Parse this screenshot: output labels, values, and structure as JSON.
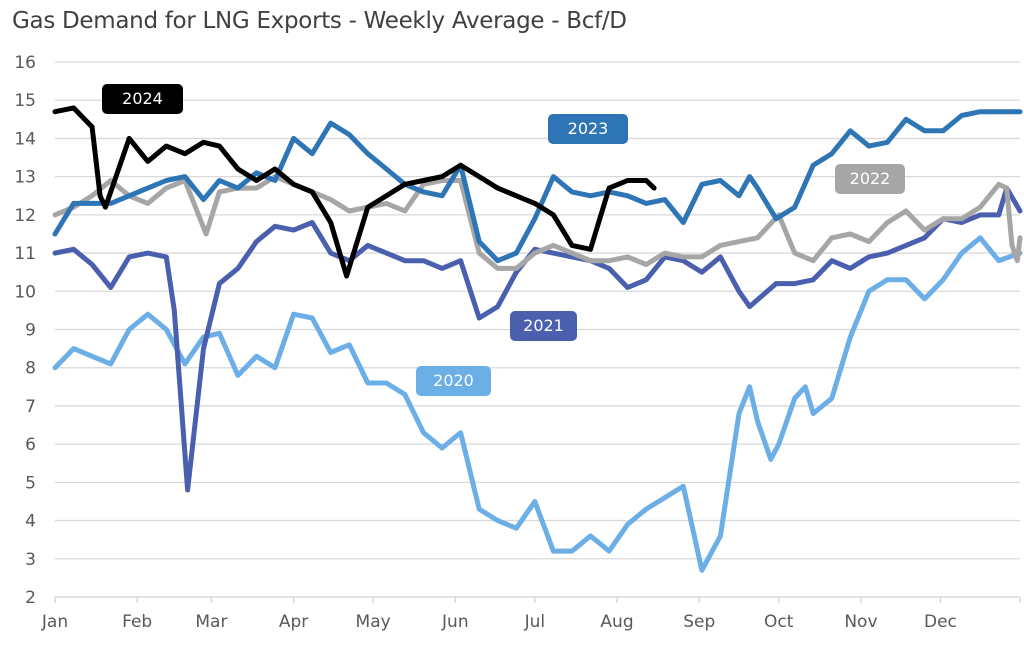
{
  "chart_data": {
    "type": "line",
    "title": "Gas Demand for LNG Exports - Weekly Average - Bcf/D",
    "xlabel": "",
    "ylabel": "",
    "ylim": [
      2,
      16
    ],
    "yticks": [
      "2",
      "3",
      "4",
      "5",
      "6",
      "7",
      "8",
      "9",
      "10",
      "11",
      "12",
      "13",
      "14",
      "15",
      "16"
    ],
    "xticks": [
      "Jan",
      "Feb",
      "Mar",
      "Apr",
      "May",
      "Jun",
      "Jul",
      "Aug",
      "Sep",
      "Oct",
      "Nov",
      "Dec"
    ],
    "grid": true,
    "legend": "inline labels",
    "series": [
      {
        "name": "2020",
        "color": "#6CAEE6",
        "points": [
          [
            "Jan 1",
            8.0
          ],
          [
            "Jan 8",
            8.5
          ],
          [
            "Jan 15",
            8.3
          ],
          [
            "Jan 22",
            8.1
          ],
          [
            "Jan 29",
            9.0
          ],
          [
            "Feb 5",
            9.4
          ],
          [
            "Feb 12",
            9.0
          ],
          [
            "Feb 19",
            8.1
          ],
          [
            "Feb 26",
            8.8
          ],
          [
            "Mar 4",
            8.9
          ],
          [
            "Mar 11",
            7.8
          ],
          [
            "Mar 18",
            8.3
          ],
          [
            "Mar 25",
            8.0
          ],
          [
            "Apr 1",
            9.4
          ],
          [
            "Apr 8",
            9.3
          ],
          [
            "Apr 15",
            8.4
          ],
          [
            "Apr 22",
            8.6
          ],
          [
            "Apr 29",
            7.6
          ],
          [
            "May 6",
            7.6
          ],
          [
            "May 13",
            7.3
          ],
          [
            "May 20",
            6.3
          ],
          [
            "May 27",
            5.9
          ],
          [
            "Jun 3",
            6.3
          ],
          [
            "Jun 10",
            4.3
          ],
          [
            "Jun 17",
            4.0
          ],
          [
            "Jun 24",
            3.8
          ],
          [
            "Jul 1",
            4.5
          ],
          [
            "Jul 8",
            3.2
          ],
          [
            "Jul 15",
            3.2
          ],
          [
            "Jul 22",
            3.6
          ],
          [
            "Jul 29",
            3.2
          ],
          [
            "Aug 5",
            3.9
          ],
          [
            "Aug 12",
            4.3
          ],
          [
            "Aug 19",
            4.6
          ],
          [
            "Aug 26",
            4.9
          ],
          [
            "Sep 2",
            2.7
          ],
          [
            "Sep 9",
            3.6
          ],
          [
            "Sep 16",
            6.8
          ],
          [
            "Sep 20",
            7.5
          ],
          [
            "Sep 23",
            6.6
          ],
          [
            "Sep 28",
            5.6
          ],
          [
            "Oct 1",
            6.0
          ],
          [
            "Oct 7",
            7.2
          ],
          [
            "Oct 11",
            7.5
          ],
          [
            "Oct 14",
            6.8
          ],
          [
            "Oct 21",
            7.2
          ],
          [
            "Oct 28",
            8.8
          ],
          [
            "Nov 4",
            10.0
          ],
          [
            "Nov 11",
            10.3
          ],
          [
            "Nov 18",
            10.3
          ],
          [
            "Nov 25",
            9.8
          ],
          [
            "Dec 2",
            10.3
          ],
          [
            "Dec 9",
            11.0
          ],
          [
            "Dec 16",
            11.4
          ],
          [
            "Dec 23",
            10.8
          ],
          [
            "Dec 31",
            11.0
          ]
        ]
      },
      {
        "name": "2021",
        "color": "#4A5FAD",
        "points": [
          [
            "Jan 1",
            11.0
          ],
          [
            "Jan 8",
            11.1
          ],
          [
            "Jan 15",
            10.7
          ],
          [
            "Jan 22",
            10.1
          ],
          [
            "Jan 29",
            10.9
          ],
          [
            "Feb 5",
            11.0
          ],
          [
            "Feb 12",
            10.9
          ],
          [
            "Feb 15",
            9.5
          ],
          [
            "Feb 20",
            4.8
          ],
          [
            "Feb 26",
            8.5
          ],
          [
            "Mar 4",
            10.2
          ],
          [
            "Mar 11",
            10.6
          ],
          [
            "Mar 18",
            11.3
          ],
          [
            "Mar 25",
            11.7
          ],
          [
            "Apr 1",
            11.6
          ],
          [
            "Apr 8",
            11.8
          ],
          [
            "Apr 15",
            11.0
          ],
          [
            "Apr 22",
            10.8
          ],
          [
            "Apr 29",
            11.2
          ],
          [
            "May 6",
            11.0
          ],
          [
            "May 13",
            10.8
          ],
          [
            "May 20",
            10.8
          ],
          [
            "May 27",
            10.6
          ],
          [
            "Jun 3",
            10.8
          ],
          [
            "Jun 10",
            9.3
          ],
          [
            "Jun 17",
            9.6
          ],
          [
            "Jun 24",
            10.5
          ],
          [
            "Jul 1",
            11.1
          ],
          [
            "Jul 8",
            11.0
          ],
          [
            "Jul 15",
            10.9
          ],
          [
            "Jul 22",
            10.8
          ],
          [
            "Jul 29",
            10.6
          ],
          [
            "Aug 5",
            10.1
          ],
          [
            "Aug 12",
            10.3
          ],
          [
            "Aug 19",
            10.9
          ],
          [
            "Aug 26",
            10.8
          ],
          [
            "Sep 2",
            10.5
          ],
          [
            "Sep 9",
            10.9
          ],
          [
            "Sep 16",
            10.0
          ],
          [
            "Sep 20",
            9.6
          ],
          [
            "Sep 30",
            10.2
          ],
          [
            "Oct 7",
            10.2
          ],
          [
            "Oct 14",
            10.3
          ],
          [
            "Oct 21",
            10.8
          ],
          [
            "Oct 28",
            10.6
          ],
          [
            "Nov 4",
            10.9
          ],
          [
            "Nov 11",
            11.0
          ],
          [
            "Nov 18",
            11.2
          ],
          [
            "Nov 25",
            11.4
          ],
          [
            "Dec 2",
            11.9
          ],
          [
            "Dec 9",
            11.8
          ],
          [
            "Dec 16",
            12.0
          ],
          [
            "Dec 23",
            12.0
          ],
          [
            "Dec 26",
            12.7
          ],
          [
            "Dec 31",
            12.1
          ]
        ]
      },
      {
        "name": "2022",
        "color": "#A6A6A6",
        "points": [
          [
            "Jan 1",
            12.0
          ],
          [
            "Jan 8",
            12.2
          ],
          [
            "Jan 15",
            12.5
          ],
          [
            "Jan 22",
            12.9
          ],
          [
            "Jan 29",
            12.5
          ],
          [
            "Feb 5",
            12.3
          ],
          [
            "Feb 12",
            12.7
          ],
          [
            "Feb 19",
            12.9
          ],
          [
            "Feb 27",
            11.5
          ],
          [
            "Mar 4",
            12.6
          ],
          [
            "Mar 11",
            12.7
          ],
          [
            "Mar 18",
            12.7
          ],
          [
            "Mar 25",
            13.0
          ],
          [
            "Apr 1",
            12.8
          ],
          [
            "Apr 8",
            12.6
          ],
          [
            "Apr 15",
            12.4
          ],
          [
            "Apr 22",
            12.1
          ],
          [
            "Apr 29",
            12.2
          ],
          [
            "May 6",
            12.3
          ],
          [
            "May 13",
            12.1
          ],
          [
            "May 20",
            12.8
          ],
          [
            "May 27",
            12.9
          ],
          [
            "Jun 3",
            12.9
          ],
          [
            "Jun 10",
            11.0
          ],
          [
            "Jun 17",
            10.6
          ],
          [
            "Jun 24",
            10.6
          ],
          [
            "Jul 1",
            11.0
          ],
          [
            "Jul 8",
            11.2
          ],
          [
            "Jul 15",
            11.0
          ],
          [
            "Jul 22",
            10.8
          ],
          [
            "Jul 29",
            10.8
          ],
          [
            "Aug 5",
            10.9
          ],
          [
            "Aug 12",
            10.7
          ],
          [
            "Aug 19",
            11.0
          ],
          [
            "Aug 26",
            10.9
          ],
          [
            "Sep 2",
            10.9
          ],
          [
            "Sep 9",
            11.2
          ],
          [
            "Sep 16",
            11.3
          ],
          [
            "Sep 23",
            11.4
          ],
          [
            "Oct 1",
            12.0
          ],
          [
            "Oct 7",
            11.0
          ],
          [
            "Oct 14",
            10.8
          ],
          [
            "Oct 21",
            11.4
          ],
          [
            "Oct 28",
            11.5
          ],
          [
            "Nov 4",
            11.3
          ],
          [
            "Nov 11",
            11.8
          ],
          [
            "Nov 18",
            12.1
          ],
          [
            "Nov 25",
            11.6
          ],
          [
            "Dec 2",
            11.9
          ],
          [
            "Dec 9",
            11.9
          ],
          [
            "Dec 16",
            12.2
          ],
          [
            "Dec 23",
            12.8
          ],
          [
            "Dec 26",
            12.7
          ],
          [
            "Dec 28",
            11.2
          ],
          [
            "Dec 30",
            10.8
          ],
          [
            "Dec 31",
            11.4
          ]
        ]
      },
      {
        "name": "2023",
        "color": "#2E75B6",
        "points": [
          [
            "Jan 1",
            11.5
          ],
          [
            "Jan 8",
            12.3
          ],
          [
            "Jan 15",
            12.3
          ],
          [
            "Jan 22",
            12.3
          ],
          [
            "Jan 29",
            12.5
          ],
          [
            "Feb 5",
            12.7
          ],
          [
            "Feb 12",
            12.9
          ],
          [
            "Feb 19",
            13.0
          ],
          [
            "Feb 26",
            12.4
          ],
          [
            "Mar 4",
            12.9
          ],
          [
            "Mar 11",
            12.7
          ],
          [
            "Mar 18",
            13.1
          ],
          [
            "Mar 25",
            12.9
          ],
          [
            "Apr 1",
            14.0
          ],
          [
            "Apr 8",
            13.6
          ],
          [
            "Apr 15",
            14.4
          ],
          [
            "Apr 22",
            14.1
          ],
          [
            "Apr 29",
            13.6
          ],
          [
            "May 6",
            13.2
          ],
          [
            "May 13",
            12.8
          ],
          [
            "May 20",
            12.6
          ],
          [
            "May 27",
            12.5
          ],
          [
            "Jun 3",
            13.3
          ],
          [
            "Jun 10",
            11.3
          ],
          [
            "Jun 17",
            10.8
          ],
          [
            "Jun 24",
            11.0
          ],
          [
            "Jul 1",
            11.9
          ],
          [
            "Jul 8",
            13.0
          ],
          [
            "Jul 15",
            12.6
          ],
          [
            "Jul 22",
            12.5
          ],
          [
            "Jul 29",
            12.6
          ],
          [
            "Aug 5",
            12.5
          ],
          [
            "Aug 12",
            12.3
          ],
          [
            "Aug 19",
            12.4
          ],
          [
            "Aug 26",
            11.8
          ],
          [
            "Sep 2",
            12.8
          ],
          [
            "Sep 9",
            12.9
          ],
          [
            "Sep 16",
            12.5
          ],
          [
            "Sep 20",
            13.0
          ],
          [
            "Sep 23",
            12.7
          ],
          [
            "Sep 30",
            11.9
          ],
          [
            "Oct 7",
            12.2
          ],
          [
            "Oct 14",
            13.3
          ],
          [
            "Oct 21",
            13.6
          ],
          [
            "Oct 28",
            14.2
          ],
          [
            "Nov 4",
            13.8
          ],
          [
            "Nov 11",
            13.9
          ],
          [
            "Nov 18",
            14.5
          ],
          [
            "Nov 25",
            14.2
          ],
          [
            "Dec 2",
            14.2
          ],
          [
            "Dec 9",
            14.6
          ],
          [
            "Dec 16",
            14.7
          ],
          [
            "Dec 23",
            14.7
          ],
          [
            "Dec 31",
            14.7
          ]
        ]
      },
      {
        "name": "2024",
        "color": "#000000",
        "points": [
          [
            "Jan 1",
            14.7
          ],
          [
            "Jan 8",
            14.8
          ],
          [
            "Jan 15",
            14.3
          ],
          [
            "Jan 18",
            12.5
          ],
          [
            "Jan 20",
            12.2
          ],
          [
            "Jan 29",
            14.0
          ],
          [
            "Feb 5",
            13.4
          ],
          [
            "Feb 12",
            13.8
          ],
          [
            "Feb 19",
            13.6
          ],
          [
            "Feb 26",
            13.9
          ],
          [
            "Mar 4",
            13.8
          ],
          [
            "Mar 11",
            13.2
          ],
          [
            "Mar 18",
            12.9
          ],
          [
            "Mar 25",
            13.2
          ],
          [
            "Apr 1",
            12.8
          ],
          [
            "Apr 8",
            12.6
          ],
          [
            "Apr 15",
            11.8
          ],
          [
            "Apr 21",
            10.4
          ],
          [
            "Apr 29",
            12.2
          ],
          [
            "May 6",
            12.5
          ],
          [
            "May 13",
            12.8
          ],
          [
            "May 20",
            12.9
          ],
          [
            "May 27",
            13.0
          ],
          [
            "Jun 3",
            13.3
          ],
          [
            "Jun 10",
            13.0
          ],
          [
            "Jun 17",
            12.7
          ],
          [
            "Jun 24",
            12.5
          ],
          [
            "Jul 1",
            12.3
          ],
          [
            "Jul 8",
            12.0
          ],
          [
            "Jul 15",
            11.2
          ],
          [
            "Jul 22",
            11.1
          ],
          [
            "Jul 29",
            12.7
          ],
          [
            "Aug 5",
            12.9
          ],
          [
            "Aug 12",
            12.9
          ],
          [
            "Aug 15",
            12.7
          ]
        ]
      }
    ]
  }
}
